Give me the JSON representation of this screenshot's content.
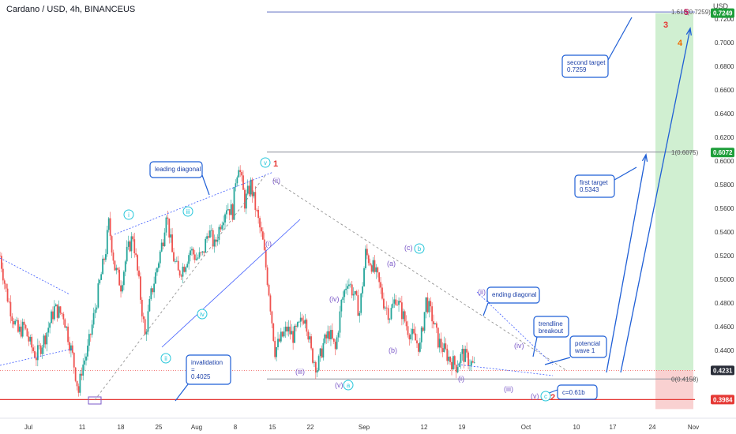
{
  "header": {
    "title": "Cardano / USD, 4h, BINANCEUS",
    "currency": "USD"
  },
  "colors": {
    "up": "#26a69a",
    "down": "#ef5350",
    "wave": "#7b59c8",
    "cyan": "#26c6da",
    "callout": "#1f5fd6",
    "support": "#e53935",
    "badge_green": "#1e9e3a",
    "badge_dark": "#2a2e39"
  },
  "chart_data": {
    "type": "candlestick",
    "title": "Cardano / USD, 4h, BINANCEUS",
    "ylabel": "USD",
    "ylim": [
      0.386,
      0.736
    ],
    "x_ticks": [
      "Jul",
      "11",
      "18",
      "25",
      "Aug",
      "8",
      "15",
      "22",
      "Sep",
      "12",
      "19",
      "Oct",
      "10",
      "17",
      "24",
      "Nov"
    ],
    "y_ticks": [
      "0.4400",
      "0.4600",
      "0.4800",
      "0.5000",
      "0.5200",
      "0.5400",
      "0.5600",
      "0.5800",
      "0.6000",
      "0.6200",
      "0.6400",
      "0.6600",
      "0.6800",
      "0.7000",
      "0.7200"
    ],
    "price_badges": [
      {
        "value": 0.7249,
        "label": "0.7249",
        "style": "green"
      },
      {
        "value": 0.6072,
        "label": "0.6072",
        "style": "green"
      },
      {
        "value": 0.4231,
        "label": "0.4231",
        "style": "dark"
      },
      {
        "value": 0.3984,
        "label": "0.3984",
        "style": "red"
      }
    ],
    "price_path": [
      [
        0,
        0.52
      ],
      [
        2,
        0.49
      ],
      [
        4,
        0.47
      ],
      [
        6,
        0.455
      ],
      [
        8,
        0.46
      ],
      [
        10,
        0.445
      ],
      [
        12,
        0.435
      ],
      [
        15,
        0.452
      ],
      [
        18,
        0.475
      ],
      [
        21,
        0.47
      ],
      [
        24,
        0.435
      ],
      [
        26,
        0.405
      ],
      [
        27,
        0.424
      ],
      [
        29,
        0.44
      ],
      [
        31,
        0.468
      ],
      [
        33,
        0.497
      ],
      [
        35,
        0.525
      ],
      [
        36,
        0.547
      ],
      [
        38,
        0.51
      ],
      [
        40,
        0.495
      ],
      [
        42,
        0.522
      ],
      [
        44,
        0.537
      ],
      [
        46,
        0.496
      ],
      [
        48,
        0.452
      ],
      [
        50,
        0.487
      ],
      [
        52,
        0.51
      ],
      [
        54,
        0.535
      ],
      [
        55,
        0.558
      ],
      [
        57,
        0.522
      ],
      [
        59,
        0.505
      ],
      [
        61,
        0.512
      ],
      [
        63,
        0.525
      ],
      [
        65,
        0.518
      ],
      [
        67,
        0.52
      ],
      [
        69,
        0.542
      ],
      [
        71,
        0.528
      ],
      [
        73,
        0.548
      ],
      [
        75,
        0.562
      ],
      [
        77,
        0.557
      ],
      [
        78,
        0.585
      ],
      [
        79,
        0.598
      ],
      [
        81,
        0.565
      ],
      [
        83,
        0.58
      ],
      [
        85,
        0.555
      ],
      [
        87,
        0.531
      ],
      [
        89,
        0.49
      ],
      [
        91,
        0.44
      ],
      [
        93,
        0.45
      ],
      [
        95,
        0.458
      ],
      [
        97,
        0.452
      ],
      [
        99,
        0.46
      ],
      [
        101,
        0.471
      ],
      [
        103,
        0.438
      ],
      [
        105,
        0.425
      ],
      [
        107,
        0.445
      ],
      [
        109,
        0.455
      ],
      [
        111,
        0.44
      ],
      [
        113,
        0.48
      ],
      [
        115,
        0.5
      ],
      [
        117,
        0.488
      ],
      [
        119,
        0.472
      ],
      [
        121,
        0.522
      ],
      [
        123,
        0.513
      ],
      [
        125,
        0.5
      ],
      [
        127,
        0.481
      ],
      [
        129,
        0.47
      ],
      [
        131,
        0.485
      ],
      [
        133,
        0.472
      ],
      [
        135,
        0.458
      ],
      [
        137,
        0.45
      ],
      [
        139,
        0.443
      ],
      [
        141,
        0.482
      ],
      [
        143,
        0.468
      ],
      [
        145,
        0.448
      ],
      [
        147,
        0.44
      ],
      [
        149,
        0.432
      ],
      [
        151,
        0.427
      ],
      [
        153,
        0.437
      ],
      [
        155,
        0.432
      ],
      [
        157,
        0.426
      ]
    ],
    "x_range": [
      0,
      230
    ],
    "levels": [
      {
        "label": "1.618(0.7259)",
        "value": 0.7259
      },
      {
        "label": "1(0.6075)",
        "value": 0.6075
      },
      {
        "label": "0(0.4158)",
        "value": 0.4158
      }
    ],
    "support_line": 0.3984,
    "projection_zone": {
      "top": 0.7249,
      "entry": 0.4231,
      "stop": 0.3984
    },
    "wave_labels": {
      "i": "i",
      "ii": "ii",
      "iii": "iii",
      "iv": "iv",
      "v": "v",
      "one": "1",
      "two_paren": "(ii)",
      "one_paren": "(i)",
      "iii_paren": "(iii)",
      "iv_paren": "(iv)",
      "v_paren": "(v)",
      "a_circle": "a",
      "a_paren": "(a)",
      "b_paren": "(b)",
      "c_paren": "(c)",
      "b_circle": "b",
      "i2": "(i)",
      "ii2": "(ii)",
      "iii2": "(iii)",
      "iv2": "(iv)",
      "v2": "(v)",
      "c_circle": "c",
      "two": "2",
      "three": "3",
      "four": "4",
      "five": "5"
    },
    "annotations": {
      "leading_diagonal": "leading diagonal",
      "ending_diagonal": "ending diagonal",
      "invalidation_1": "invalidation",
      "invalidation_2": "=",
      "invalidation_3": "0.4025",
      "trendline_1": "trendline",
      "trendline_2": "breakout",
      "potential_1": "potencial",
      "potential_2": "wave 1",
      "first_target_1": "first target",
      "first_target_2": "0.5343",
      "second_target_1": "second target",
      "second_target_2": "0.7259",
      "c_ratio": "c=0.61b"
    }
  }
}
